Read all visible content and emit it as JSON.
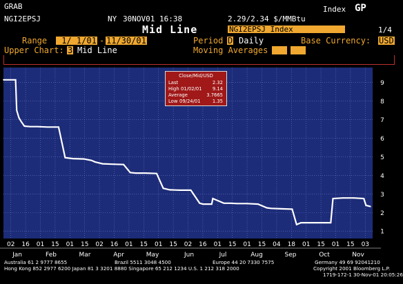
{
  "header": {
    "screen": "GRAB",
    "ticker": "NGI2EPSJ",
    "location": "NY",
    "datetime": "30NOV01 16:38",
    "quote": "2.29/2.34 $/MMBtu",
    "market_label": "Index",
    "market_key": "GP",
    "title": "Mid Line",
    "security_field": "NGI2EPSJ Index",
    "page": "1/4"
  },
  "controls": {
    "range_label": "Range",
    "range_start": " 1/ 1/01",
    "range_dash": "-",
    "range_end": "11/30/01",
    "period_label": "Period",
    "period_code": "D",
    "period_value": "Daily",
    "currency_label": "Base Currency:",
    "currency_value": "USD",
    "upper_label": "Upper Chart:",
    "upper_code": "3",
    "upper_value": "Mid Line",
    "ma_label": "Moving Averages",
    "ma_1": "",
    "ma_2": ""
  },
  "colors": {
    "chart_bg": "#1d2c78",
    "grid": "#6878c8",
    "line": "#ffffff",
    "accent": "#f0a830",
    "stats_bg": "#a01818"
  },
  "stats": {
    "title": "Close/Mid/USD",
    "rows": [
      {
        "label": "Last",
        "date": "",
        "value": "2.32"
      },
      {
        "label": "High",
        "date": "01/02/01",
        "value": "9.14"
      },
      {
        "label": "Average",
        "date": "",
        "value": "3.7665"
      },
      {
        "label": "Low",
        "date": "09/24/01",
        "value": "1.35"
      }
    ]
  },
  "chart_data": {
    "type": "line",
    "ylim": [
      0.6,
      9.8
    ],
    "yticks": [
      1,
      2,
      3,
      4,
      5,
      6,
      7,
      8,
      9
    ],
    "series": [
      {
        "x": [
          "2001-01-01",
          "2001-01-12",
          "2001-01-13",
          "2001-01-15",
          "2001-01-17",
          "2001-01-20",
          "2001-01-25",
          "2001-02-01",
          "2001-02-10",
          "2001-02-20",
          "2001-02-26",
          "2001-03-05",
          "2001-03-15",
          "2001-03-22",
          "2001-03-25",
          "2001-04-01",
          "2001-04-10",
          "2001-04-20",
          "2001-04-26",
          "2001-05-01",
          "2001-05-10",
          "2001-05-20",
          "2001-05-26",
          "2001-06-01",
          "2001-06-10",
          "2001-06-20",
          "2001-06-28",
          "2001-07-01",
          "2001-07-09",
          "2001-07-10",
          "2001-07-20",
          "2001-07-26",
          "2001-08-01",
          "2001-08-10",
          "2001-08-20",
          "2001-08-28",
          "2001-09-01",
          "2001-09-10",
          "2001-09-20",
          "2001-09-24",
          "2001-09-28",
          "2001-10-05",
          "2001-10-15",
          "2001-10-25",
          "2001-10-27",
          "2001-11-05",
          "2001-11-15",
          "2001-11-24",
          "2001-11-26",
          "2001-11-30"
        ],
        "y": [
          9.14,
          9.14,
          7.5,
          7.1,
          6.9,
          6.65,
          6.62,
          6.62,
          6.6,
          6.6,
          4.95,
          4.9,
          4.88,
          4.8,
          4.72,
          4.62,
          4.6,
          4.58,
          4.15,
          4.12,
          4.12,
          4.1,
          3.3,
          3.22,
          3.2,
          3.2,
          2.5,
          2.45,
          2.45,
          2.75,
          2.5,
          2.5,
          2.48,
          2.48,
          2.45,
          2.25,
          2.22,
          2.2,
          2.18,
          1.35,
          1.45,
          1.45,
          1.45,
          1.45,
          2.75,
          2.78,
          2.78,
          2.75,
          2.38,
          2.32
        ]
      }
    ],
    "x_day_labels": [
      "02",
      "16",
      "01",
      "15",
      "01",
      "15",
      "02",
      "16",
      "01",
      "15",
      "01",
      "15",
      "02",
      "16",
      "01",
      "15",
      "01",
      "15",
      "04",
      "18",
      "01",
      "15",
      "01",
      "15",
      "03"
    ],
    "x_month_labels": [
      "Jan",
      "Feb",
      "Mar",
      "Apr",
      "May",
      "Jun",
      "Jul",
      "Aug",
      "Sep",
      "Oct",
      "Nov"
    ]
  },
  "footer": {
    "line1_a": "Australia 61 2 9777 8655",
    "line1_b": "Brazil 5511 3048 4500",
    "line1_c": "Europe 44 20 7330 7575",
    "line1_d": "Germany 49 69 92041210",
    "line2_a": "Hong Kong 852 2977 6200 Japan 81 3 3201 8880 Singapore 65 212 1234 U.S. 1 212 318 2000",
    "line2_b": "Copyright 2001 Bloomberg L.P.",
    "line3": "1719-172-1 30-Nov-01 20:05:26"
  }
}
